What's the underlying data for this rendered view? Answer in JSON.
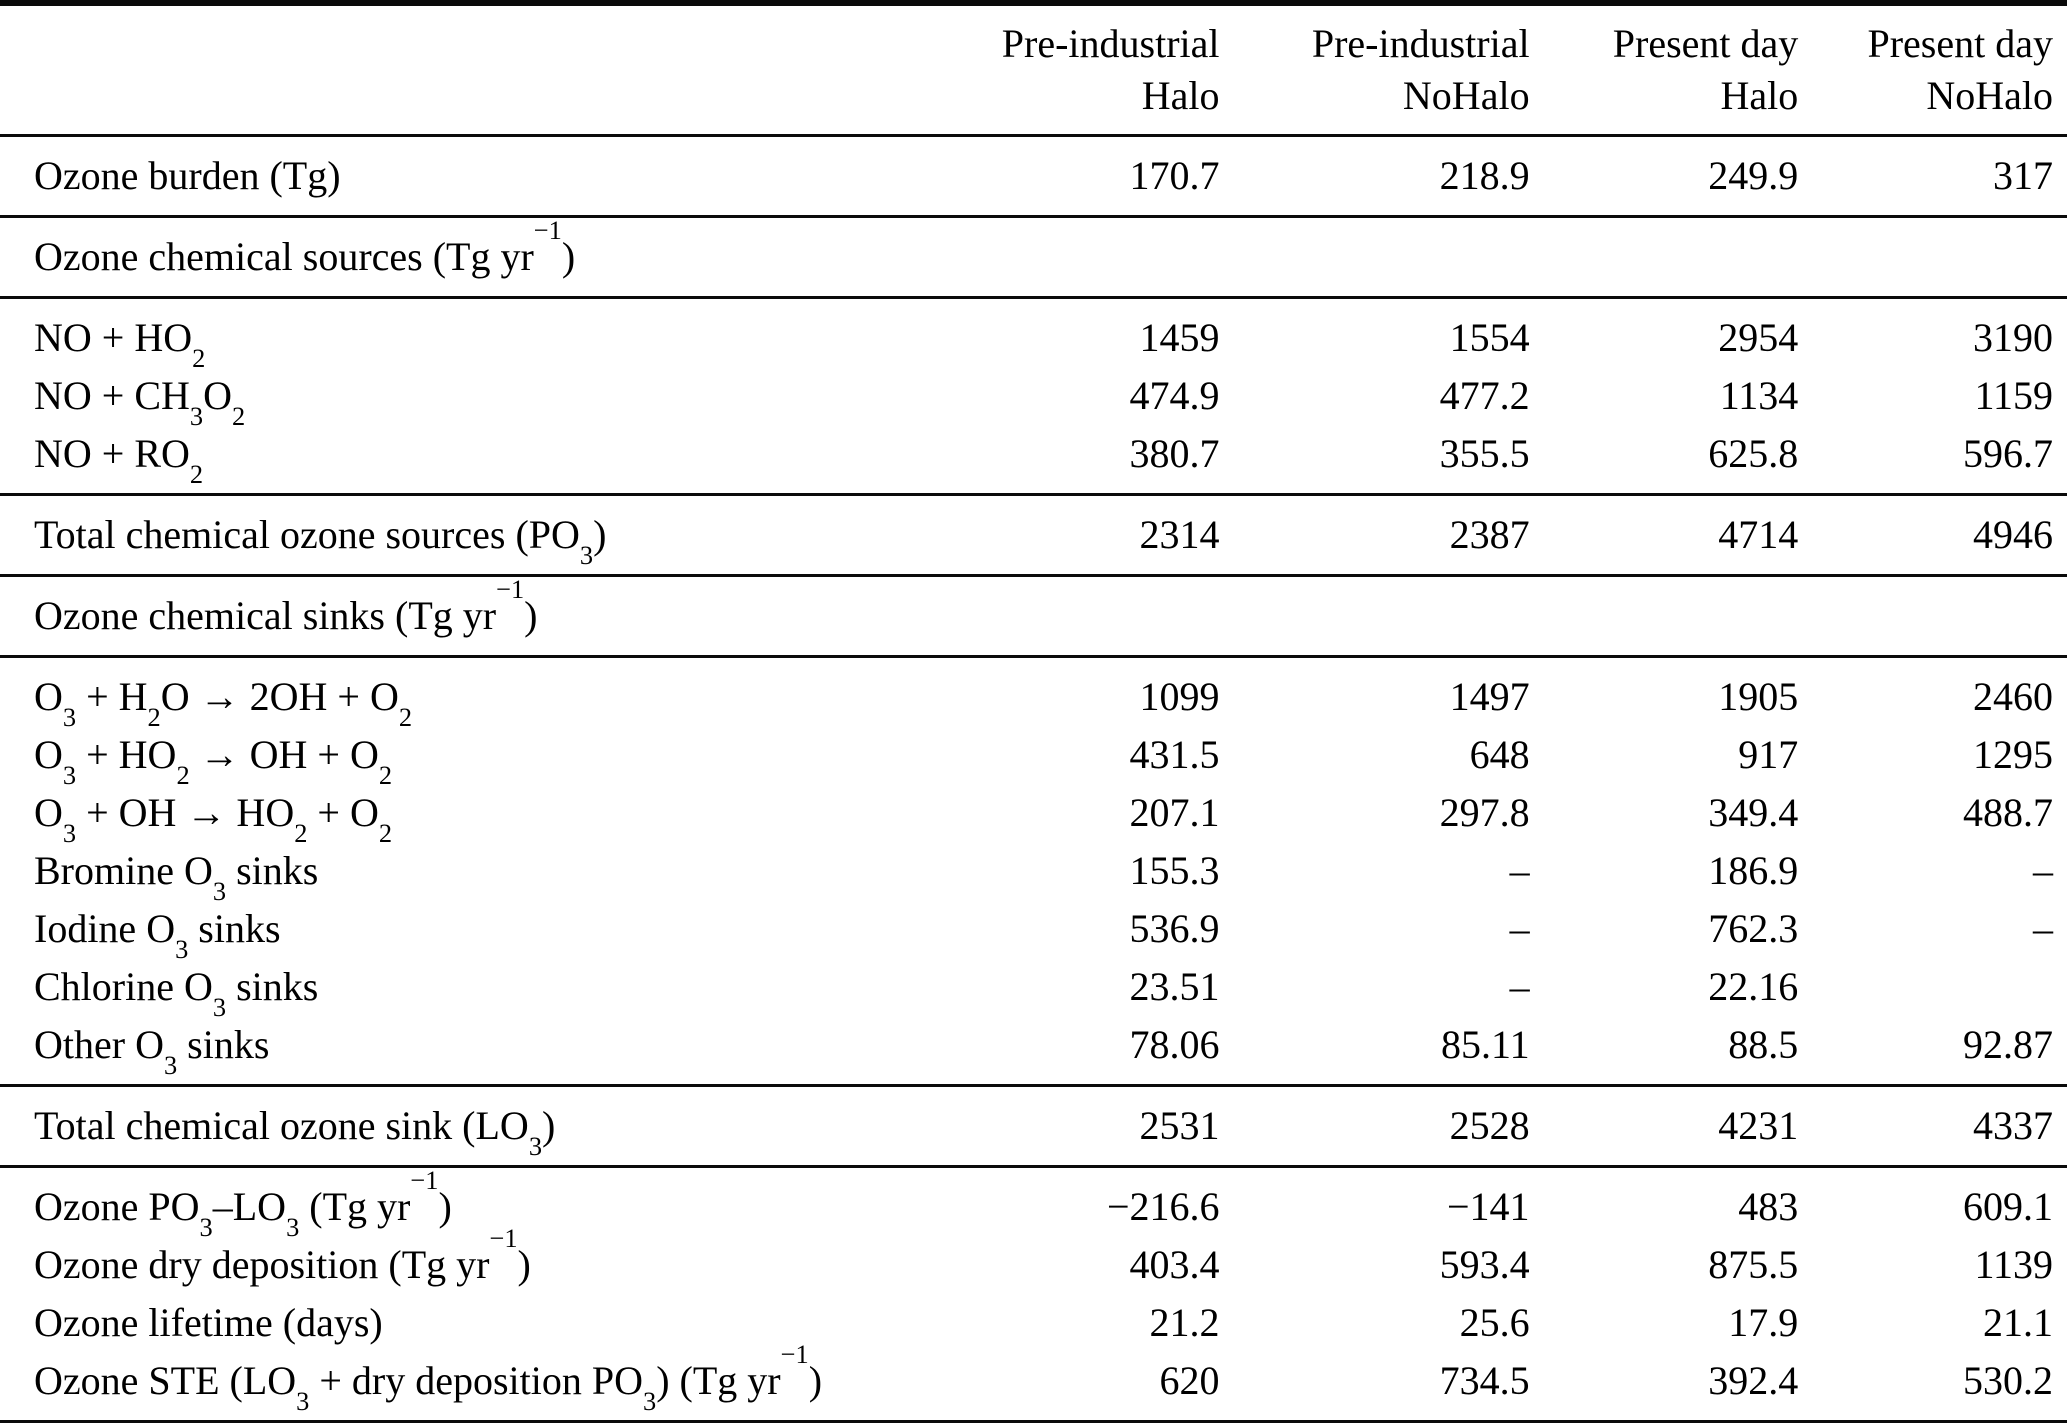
{
  "table": {
    "columns": [
      {
        "line1": "Pre-industrial",
        "line2": "Halo"
      },
      {
        "line1": "Pre-industrial",
        "line2": "NoHalo"
      },
      {
        "line1": "Present day",
        "line2": "Halo"
      },
      {
        "line1": "Present day",
        "line2": "NoHalo"
      }
    ],
    "sections": [
      {
        "kind": "data",
        "rows": [
          {
            "label": "Ozone burden (Tg)",
            "values": [
              "170.7",
              "218.9",
              "249.9",
              "317"
            ]
          }
        ]
      },
      {
        "kind": "section",
        "label": "Ozone chemical sources (Tg yr^−1^)"
      },
      {
        "kind": "data",
        "rows": [
          {
            "label": "NO + HO_2_",
            "values": [
              "1459",
              "1554",
              "2954",
              "3190"
            ]
          },
          {
            "label": "NO + CH_3_O_2_",
            "values": [
              "474.9",
              "477.2",
              "1134",
              "1159"
            ]
          },
          {
            "label": "NO + RO_2_",
            "values": [
              "380.7",
              "355.5",
              "625.8",
              "596.7"
            ]
          }
        ]
      },
      {
        "kind": "data",
        "rows": [
          {
            "label": "Total chemical ozone sources (PO_3_)",
            "values": [
              "2314",
              "2387",
              "4714",
              "4946"
            ]
          }
        ]
      },
      {
        "kind": "section",
        "label": "Ozone chemical sinks (Tg yr^−1^)"
      },
      {
        "kind": "data",
        "rows": [
          {
            "label": "O_3_ + H_2_O → 2OH + O_2_",
            "values": [
              "1099",
              "1497",
              "1905",
              "2460"
            ]
          },
          {
            "label": "O_3_ + HO_2_ → OH + O_2_",
            "values": [
              "431.5",
              "648",
              "917",
              "1295"
            ]
          },
          {
            "label": "O_3_ + OH → HO_2_ + O_2_",
            "values": [
              "207.1",
              "297.8",
              "349.4",
              "488.7"
            ]
          },
          {
            "label": "Bromine O_3_ sinks",
            "values": [
              "155.3",
              "–",
              "186.9",
              "–"
            ]
          },
          {
            "label": "Iodine O_3_ sinks",
            "values": [
              "536.9",
              "–",
              "762.3",
              "–"
            ]
          },
          {
            "label": "Chlorine O_3_ sinks",
            "values": [
              "23.51",
              "–",
              "22.16",
              ""
            ]
          },
          {
            "label": "Other O_3_ sinks",
            "values": [
              "78.06",
              "85.11",
              "88.5",
              "92.87"
            ]
          }
        ]
      },
      {
        "kind": "data",
        "rows": [
          {
            "label": "Total chemical ozone sink (LO_3_)",
            "values": [
              "2531",
              "2528",
              "4231",
              "4337"
            ]
          }
        ]
      },
      {
        "kind": "data",
        "rows": [
          {
            "label": "Ozone PO_3_–LO_3_ (Tg yr^−1^)",
            "values": [
              "−216.6",
              "−141",
              "483",
              "609.1"
            ]
          },
          {
            "label": "Ozone dry deposition (Tg yr^−1^)",
            "values": [
              "403.4",
              "593.4",
              "875.5",
              "1139"
            ]
          },
          {
            "label": "Ozone lifetime (days)",
            "values": [
              "21.2",
              "25.6",
              "17.9",
              "21.1"
            ]
          },
          {
            "label": "Ozone STE (LO_3_ + dry deposition PO_3_) (Tg yr^−1^)",
            "values": [
              "620",
              "734.5",
              "392.4",
              "530.2"
            ]
          }
        ]
      }
    ]
  }
}
